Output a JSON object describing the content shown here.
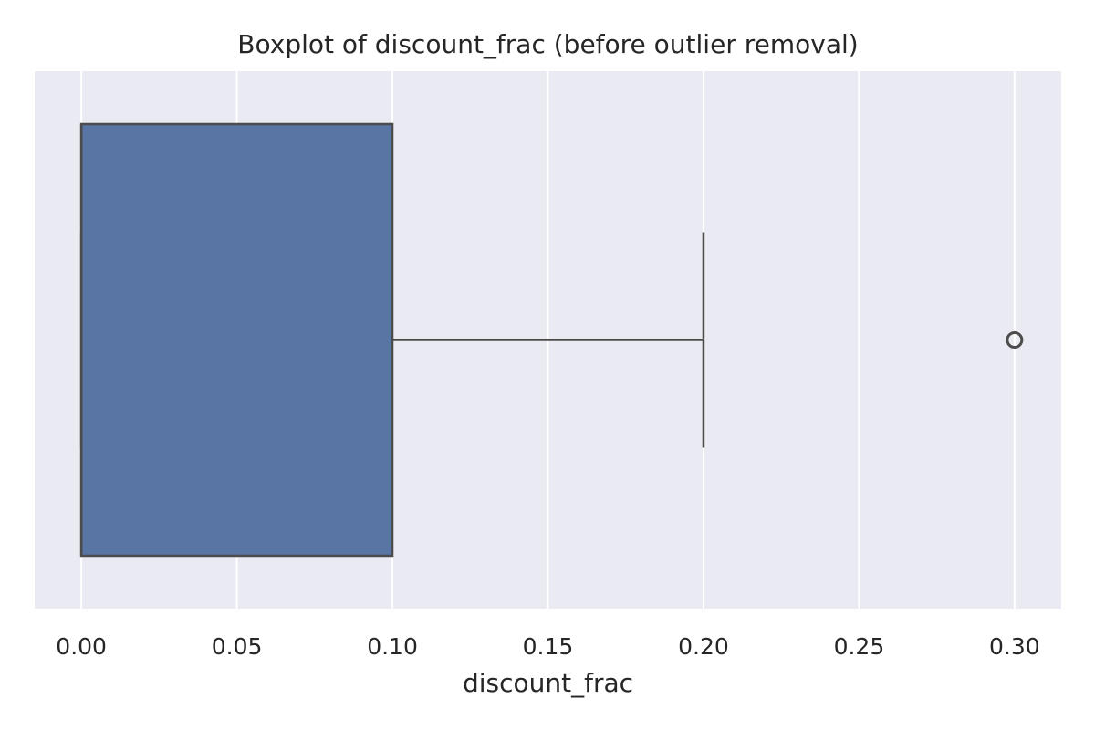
{
  "chart_data": {
    "type": "boxplot",
    "orientation": "horizontal",
    "title": "Boxplot of discount_frac (before outlier removal)",
    "xlabel": "discount_frac",
    "ylabel": "",
    "xlim": [
      -0.015,
      0.315
    ],
    "x_ticks": [
      0.0,
      0.05,
      0.1,
      0.15,
      0.2,
      0.25,
      0.3
    ],
    "x_tick_labels": [
      "0.00",
      "0.05",
      "0.10",
      "0.15",
      "0.20",
      "0.25",
      "0.30"
    ],
    "grid": "vertical",
    "series": [
      {
        "whisker_low": 0.0,
        "q1": 0.0,
        "median": 0.0,
        "q3": 0.1,
        "whisker_high": 0.2,
        "outliers": [
          0.3
        ]
      }
    ],
    "colors": {
      "box_fill": "#5875a4",
      "line": "#4c4c4c",
      "background": "#eaeaf2",
      "grid": "#ffffff",
      "text": "#262626"
    }
  }
}
